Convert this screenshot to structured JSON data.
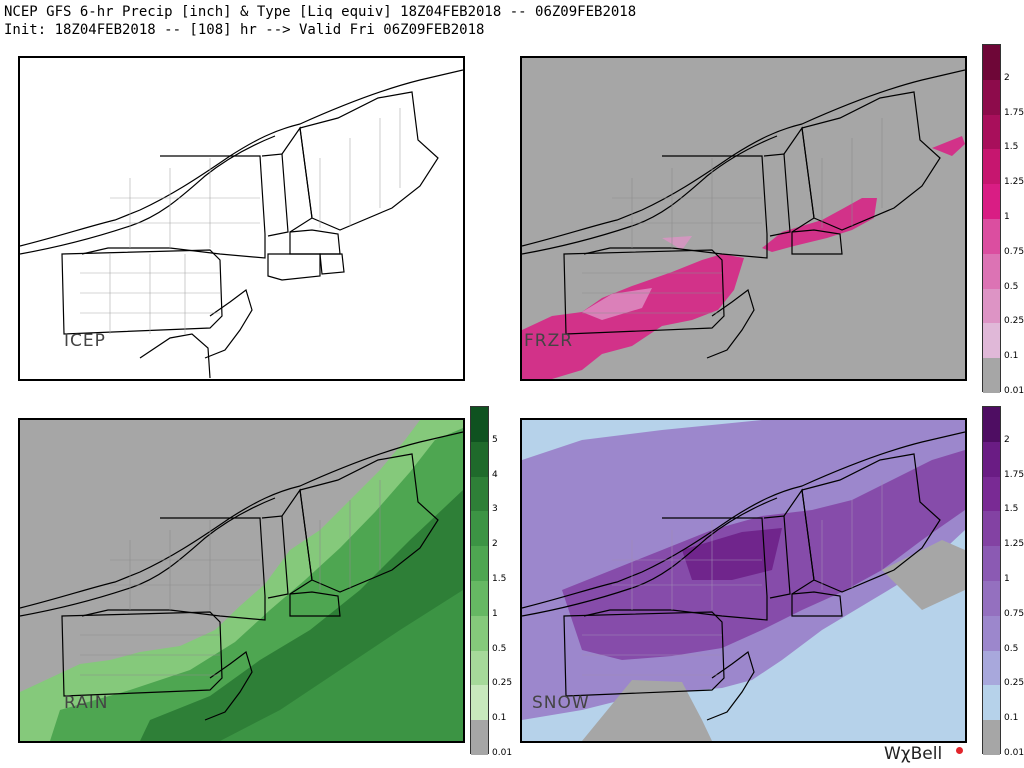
{
  "title": {
    "line1": "NCEP GFS 6-hr Precip [inch] & Type [Liq equiv] 18Z04FEB2018 -- 06Z09FEB2018",
    "line2": "Init: 18Z04FEB2018 -- [108] hr --> Valid Fri 06Z09FEB2018"
  },
  "panels": [
    {
      "id": "icep",
      "label": "ICEP",
      "no_precip_color": "#ffffff"
    },
    {
      "id": "frzr",
      "label": "FRZR",
      "no_precip_color": "#a6a6a6"
    },
    {
      "id": "rain",
      "label": "RAIN",
      "no_precip_color": "#a6a6a6"
    },
    {
      "id": "snow",
      "label": "SNOW",
      "no_precip_color": "#a6a6a6"
    }
  ],
  "colorbars": {
    "frzr": {
      "labels": [
        "2",
        "1.75",
        "1.5",
        "1.25",
        "1",
        "0.75",
        "0.5",
        "0.25",
        "0.1",
        "0.01"
      ],
      "colors": [
        "#a6a6a6",
        "#e0b8d8",
        "#dd94c5",
        "#dc73b4",
        "#db4ea0",
        "#d91d84",
        "#c6166f",
        "#a80f5b",
        "#8d0b4b",
        "#6e0637"
      ]
    },
    "rain": {
      "labels": [
        "5",
        "4",
        "3",
        "2",
        "1.5",
        "1",
        "0.5",
        "0.25",
        "0.1",
        "0.01"
      ],
      "colors": [
        "#a6a6a6",
        "#c8e8bd",
        "#a6d99a",
        "#85c97b",
        "#66b863",
        "#4ea651",
        "#3c9444",
        "#2e7f37",
        "#1f6a2b",
        "#0f5220"
      ]
    },
    "snow": {
      "labels": [
        "2",
        "1.75",
        "1.5",
        "1.25",
        "1",
        "0.75",
        "0.5",
        "0.25",
        "0.1",
        "0.01"
      ],
      "colors": [
        "#a6a6a6",
        "#b6d2ea",
        "#a8a8dc",
        "#9c87cc",
        "#9470bf",
        "#8b5ab3",
        "#8342a3",
        "#792a94",
        "#6a1c84",
        "#4e0d62"
      ]
    }
  },
  "brand": "WχBell"
}
